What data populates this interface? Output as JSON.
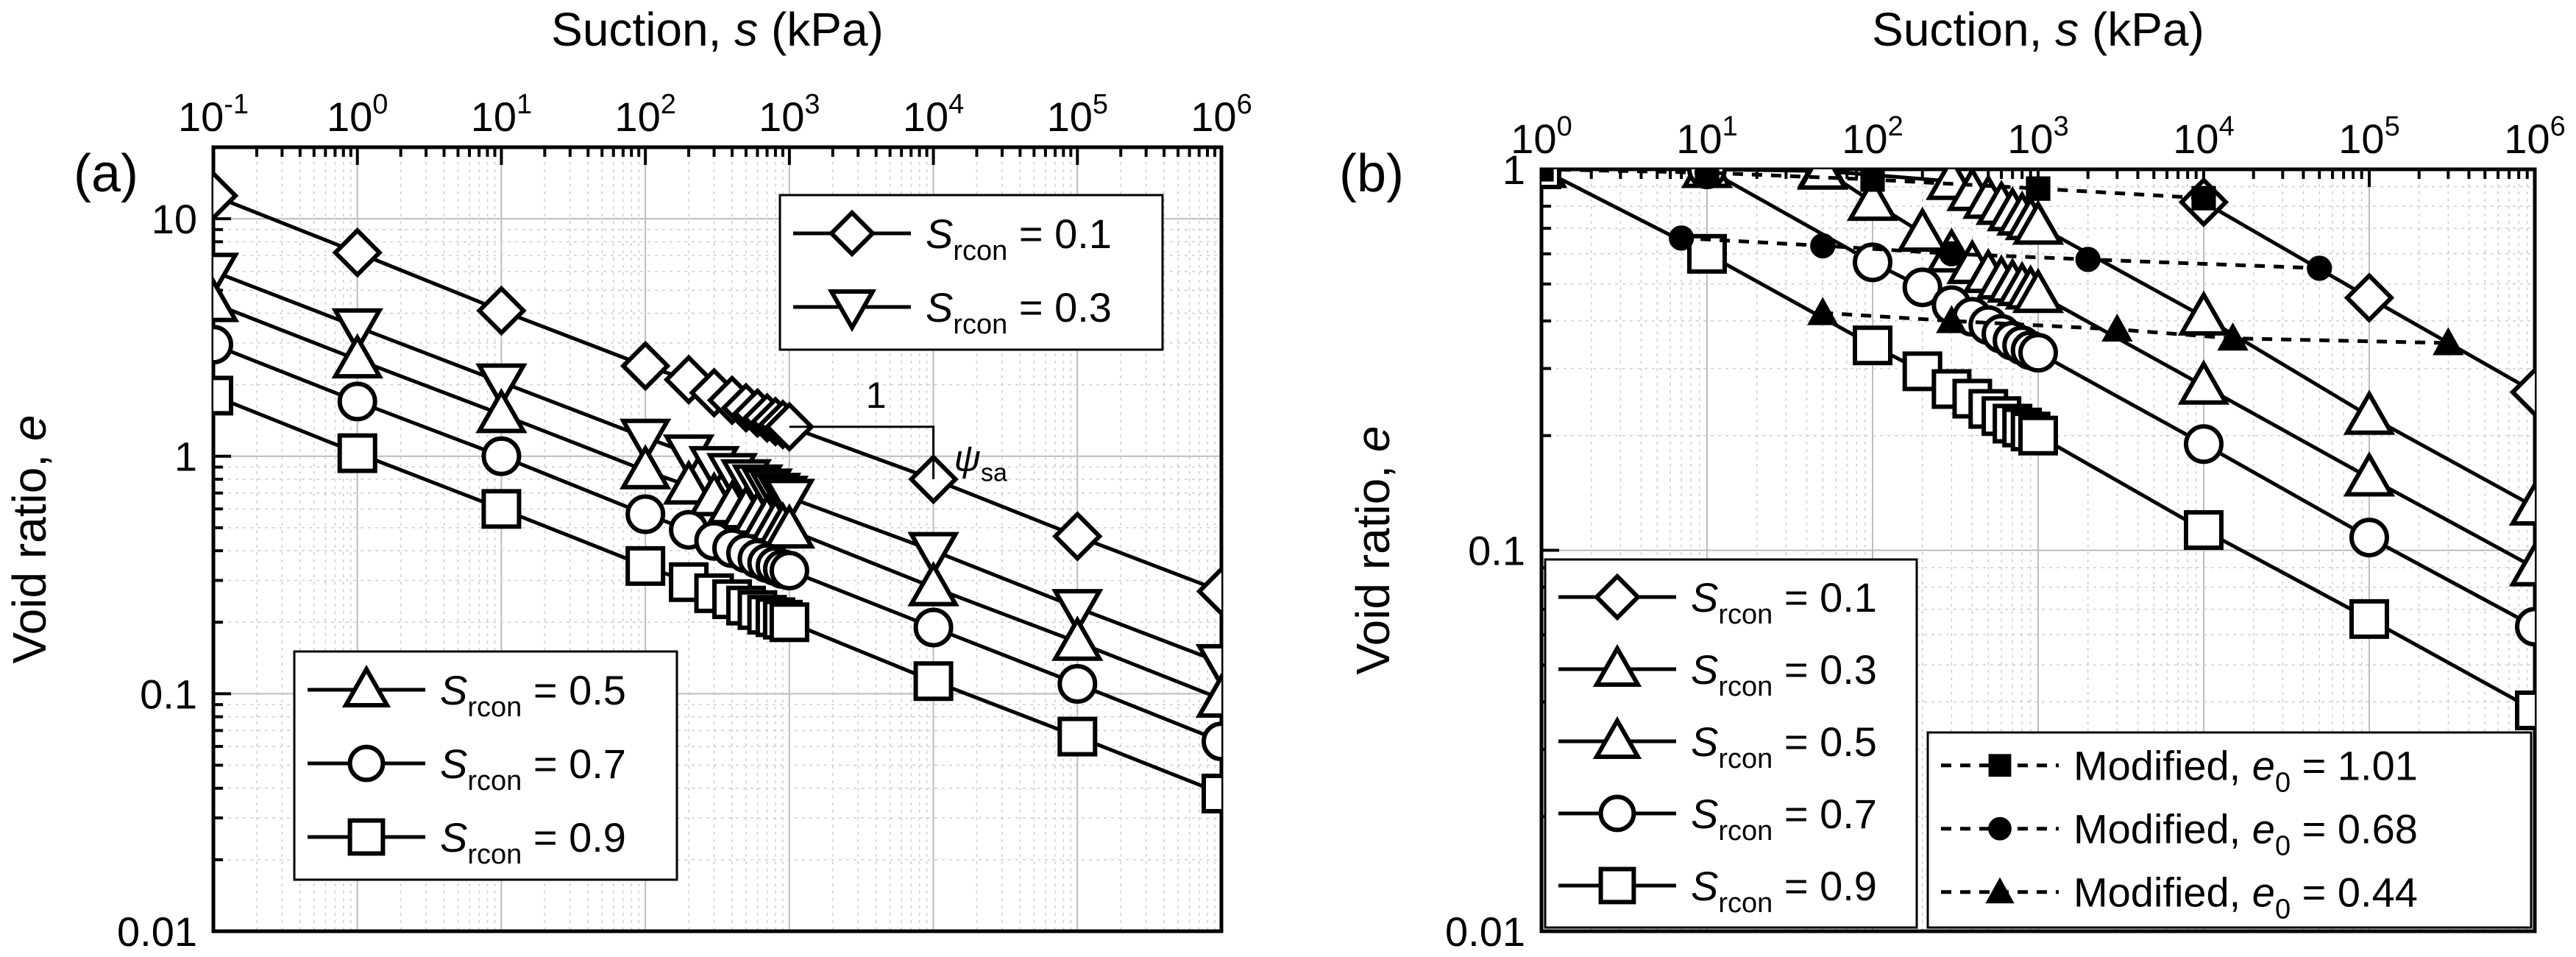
{
  "chart_data": [
    {
      "panel_label": "(a)",
      "type": "line",
      "scale": {
        "x": "log",
        "y": "log"
      },
      "x_axis": {
        "label_prefix": "Suction, ",
        "label_symbol": "s",
        "label_suffix": " (kPa)",
        "position": "top",
        "range": [
          0.1,
          1000000
        ],
        "tick_base": "10",
        "tick_exponents": [
          "-1",
          "0",
          "1",
          "2",
          "3",
          "4",
          "5",
          "6"
        ]
      },
      "y_axis": {
        "label": "Void ratio, ",
        "label_symbol": "e",
        "range": [
          0.01,
          20
        ],
        "tick_labels": [
          "0.01",
          "0.1",
          "1",
          "10"
        ],
        "tick_values": [
          0.01,
          0.1,
          1,
          10
        ]
      },
      "legends": [
        {
          "position": "top-right",
          "entries": [
            {
              "var": "S",
              "sub": "rcon",
              "value": " = 0.1",
              "marker": "diamond"
            },
            {
              "var": "S",
              "sub": "rcon",
              "value": " = 0.3",
              "marker": "triangle-down"
            }
          ]
        },
        {
          "position": "bottom-left",
          "entries": [
            {
              "var": "S",
              "sub": "rcon",
              "value": " = 0.5",
              "marker": "triangle-up"
            },
            {
              "var": "S",
              "sub": "rcon",
              "value": " = 0.7",
              "marker": "circle"
            },
            {
              "var": "S",
              "sub": "rcon",
              "value": " = 0.9",
              "marker": "square"
            }
          ]
        }
      ],
      "annotation": {
        "slope_run": "1",
        "slope_symbol": "ψ",
        "slope_sub": "sa",
        "triangle": {
          "x0": 1000,
          "x1": 10000,
          "y0": 1.33,
          "y1": 0.8
        }
      },
      "series": [
        {
          "name": "Srcon = 0.1",
          "marker": "diamond",
          "line": "solid",
          "x": [
            0.1,
            1,
            10,
            100,
            200,
            300,
            400,
            500,
            600,
            700,
            800,
            900,
            1000,
            10000,
            100000,
            1000000
          ],
          "y": [
            12.5,
            7.2,
            4.1,
            2.4,
            2.1,
            1.85,
            1.72,
            1.6,
            1.52,
            1.45,
            1.4,
            1.36,
            1.33,
            0.8,
            0.46,
            0.27
          ]
        },
        {
          "name": "Srcon = 0.3",
          "marker": "triangle-down",
          "line": "solid",
          "x": [
            0.1,
            1,
            10,
            100,
            200,
            300,
            400,
            500,
            600,
            700,
            800,
            900,
            1000,
            10000,
            100000,
            1000000
          ],
          "y": [
            6.0,
            3.5,
            2.05,
            1.2,
            1.03,
            0.92,
            0.86,
            0.81,
            0.77,
            0.74,
            0.71,
            0.69,
            0.67,
            0.4,
            0.23,
            0.135
          ]
        },
        {
          "name": "Srcon = 0.5",
          "marker": "triangle-up",
          "line": "solid",
          "x": [
            0.1,
            1,
            10,
            100,
            200,
            300,
            400,
            500,
            600,
            700,
            800,
            900,
            1000,
            10000,
            100000,
            1000000
          ],
          "y": [
            4.4,
            2.55,
            1.5,
            0.87,
            0.75,
            0.67,
            0.62,
            0.59,
            0.56,
            0.54,
            0.52,
            0.5,
            0.49,
            0.28,
            0.165,
            0.095
          ]
        },
        {
          "name": "Srcon = 0.7",
          "marker": "circle",
          "line": "solid",
          "x": [
            0.1,
            1,
            10,
            100,
            200,
            300,
            400,
            500,
            600,
            700,
            800,
            900,
            1000,
            10000,
            100000,
            1000000
          ],
          "y": [
            2.95,
            1.7,
            1.0,
            0.57,
            0.49,
            0.44,
            0.41,
            0.39,
            0.37,
            0.355,
            0.345,
            0.335,
            0.33,
            0.19,
            0.11,
            0.063
          ]
        },
        {
          "name": "Srcon = 0.9",
          "marker": "square",
          "line": "solid",
          "x": [
            0.1,
            1,
            10,
            100,
            200,
            300,
            400,
            500,
            600,
            700,
            800,
            900,
            1000,
            10000,
            100000,
            1000000
          ],
          "y": [
            1.8,
            1.03,
            0.6,
            0.345,
            0.295,
            0.265,
            0.25,
            0.235,
            0.225,
            0.215,
            0.21,
            0.205,
            0.2,
            0.113,
            0.066,
            0.038
          ]
        }
      ]
    },
    {
      "panel_label": "(b)",
      "type": "line",
      "scale": {
        "x": "log",
        "y": "log"
      },
      "x_axis": {
        "label_prefix": "Suction, ",
        "label_symbol": "s",
        "label_suffix": " (kPa)",
        "position": "top",
        "range": [
          1,
          1000000
        ],
        "tick_base": "10",
        "tick_exponents": [
          "0",
          "1",
          "2",
          "3",
          "4",
          "5",
          "6"
        ]
      },
      "y_axis": {
        "label": "Void ratio, ",
        "label_symbol": "e",
        "range": [
          0.01,
          1
        ],
        "tick_labels": [
          "0.01",
          "0.1",
          "1"
        ],
        "tick_values": [
          0.01,
          0.1,
          1
        ]
      },
      "legends": [
        {
          "position": "bottom-left",
          "entries": [
            {
              "var": "S",
              "sub": "rcon",
              "value": " = 0.1",
              "marker": "diamond"
            },
            {
              "var": "S",
              "sub": "rcon",
              "value": " = 0.3",
              "marker": "triangle-up"
            },
            {
              "var": "S",
              "sub": "rcon",
              "value": " = 0.5",
              "marker": "triangle-up"
            },
            {
              "var": "S",
              "sub": "rcon",
              "value": " = 0.7",
              "marker": "circle"
            },
            {
              "var": "S",
              "sub": "rcon",
              "value": " = 0.9",
              "marker": "square"
            }
          ]
        },
        {
          "position": "bottom-right",
          "entries": [
            {
              "text": "Modified, ",
              "var": "e",
              "sub": "0",
              "value": " = 1.01",
              "marker": "filled-square"
            },
            {
              "text": "Modified, ",
              "var": "e",
              "sub": "0",
              "value": " = 0.68",
              "marker": "filled-circle"
            },
            {
              "text": "Modified, ",
              "var": "e",
              "sub": "0",
              "value": " = 0.44",
              "marker": "filled-triangle"
            }
          ]
        }
      ],
      "series": [
        {
          "name": "Srcon = 0.1",
          "marker": "diamond",
          "line": "solid",
          "x": [
            10000,
            100000,
            1000000
          ],
          "y": [
            0.82,
            0.46,
            0.26
          ]
        },
        {
          "name": "Srcon = 0.3",
          "marker": "triangle-up",
          "line": "solid",
          "x": [
            1,
            10,
            50,
            100,
            200,
            300,
            400,
            500,
            600,
            700,
            800,
            900,
            1000,
            10000,
            100000,
            1000000
          ],
          "y": [
            1.0,
            1.0,
            1.0,
            0.82,
            0.68,
            0.6,
            0.56,
            0.53,
            0.51,
            0.5,
            0.49,
            0.48,
            0.47,
            0.27,
            0.155,
            0.09
          ]
        },
        {
          "name": "Srcon = 0.5",
          "marker": "triangle-up",
          "line": "solid",
          "x": [
            1,
            10,
            50,
            300,
            400,
            500,
            600,
            700,
            800,
            900,
            1000,
            10000,
            100000,
            1000000
          ],
          "y": [
            1.0,
            1.0,
            0.99,
            0.93,
            0.87,
            0.83,
            0.8,
            0.77,
            0.75,
            0.73,
            0.71,
            0.41,
            0.225,
            0.13
          ]
        },
        {
          "name": "Srcon = 0.7",
          "marker": "circle",
          "line": "solid",
          "x": [
            1,
            10,
            100,
            200,
            300,
            400,
            500,
            600,
            700,
            800,
            900,
            1000,
            10000,
            100000,
            1000000
          ],
          "y": [
            1.0,
            1.0,
            0.57,
            0.49,
            0.44,
            0.41,
            0.39,
            0.37,
            0.355,
            0.345,
            0.335,
            0.33,
            0.19,
            0.108,
            0.063
          ]
        },
        {
          "name": "Srcon = 0.9",
          "marker": "square",
          "line": "solid",
          "x": [
            1,
            10,
            100,
            200,
            300,
            400,
            500,
            600,
            700,
            800,
            900,
            1000,
            10000,
            100000,
            1000000
          ],
          "y": [
            1.0,
            0.6,
            0.345,
            0.295,
            0.265,
            0.25,
            0.235,
            0.225,
            0.215,
            0.21,
            0.205,
            0.2,
            0.113,
            0.066,
            0.038
          ]
        },
        {
          "name": "Modified, e0 = 1.01",
          "marker": "filled-square",
          "line": "dashed",
          "x": [
            1,
            10,
            100,
            1000,
            10000
          ],
          "y": [
            1.0,
            0.98,
            0.94,
            0.89,
            0.84
          ]
        },
        {
          "name": "Modified, e0 = 0.68",
          "marker": "filled-circle",
          "line": "dashed",
          "x": [
            7,
            50,
            300,
            2000,
            50000
          ],
          "y": [
            0.66,
            0.63,
            0.6,
            0.58,
            0.55
          ]
        },
        {
          "name": "Modified, e0 = 0.44",
          "marker": "filled-triangle",
          "line": "dashed",
          "x": [
            50,
            300,
            3000,
            15000,
            300000
          ],
          "y": [
            0.42,
            0.4,
            0.38,
            0.36,
            0.35
          ]
        }
      ]
    }
  ]
}
